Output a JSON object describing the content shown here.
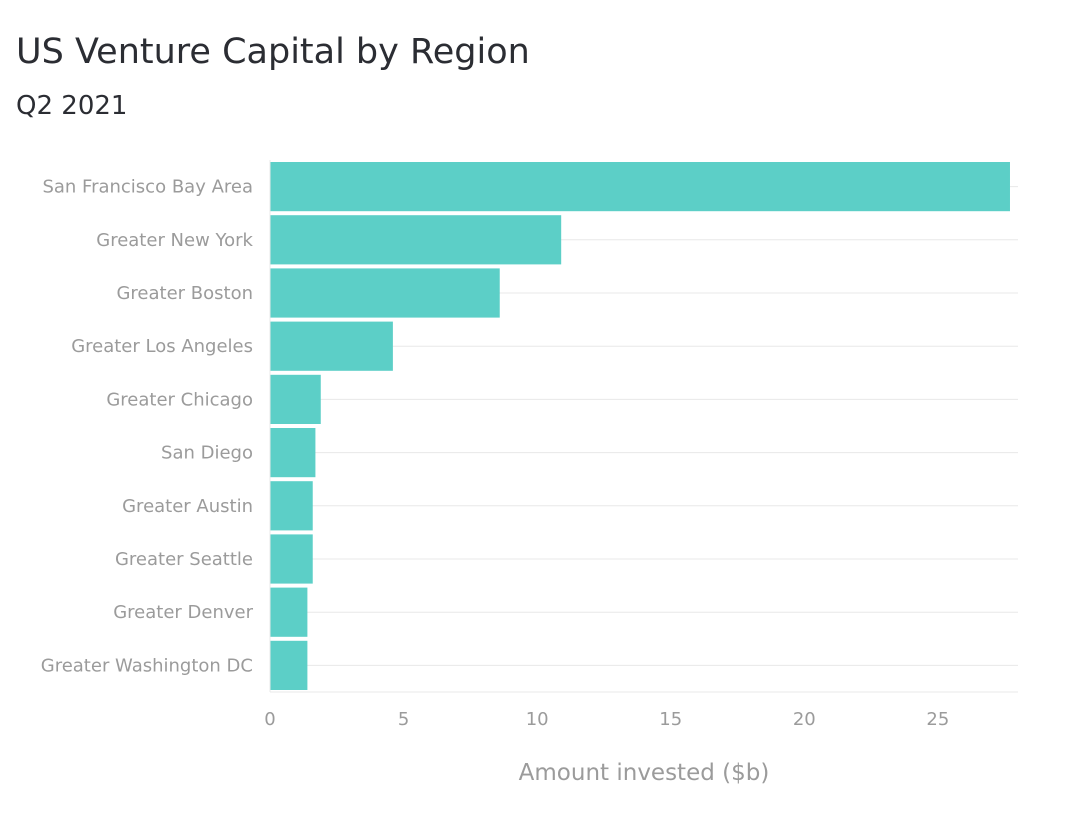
{
  "chart_data": {
    "type": "bar",
    "orientation": "horizontal",
    "title": "US Venture Capital by Region",
    "subtitle": "Q2 2021",
    "xlabel": "Amount invested ($b)",
    "ylabel": "",
    "categories": [
      "San Francisco Bay Area",
      "Greater New York",
      "Greater Boston",
      "Greater Los Angeles",
      "Greater Chicago",
      "San Diego",
      "Greater Austin",
      "Greater Seattle",
      "Greater Denver",
      "Greater Washington DC"
    ],
    "values": [
      27.7,
      10.9,
      8.6,
      4.6,
      1.9,
      1.7,
      1.6,
      1.6,
      1.4,
      1.4
    ],
    "xlim": [
      0,
      28
    ],
    "xticks": [
      0,
      5,
      10,
      15,
      20,
      25
    ],
    "grid": true,
    "legend": "none",
    "bar_color": "#5ccfc7",
    "grid_color": "#e8e8e8",
    "label_color": "#9b9b9b",
    "title_color": "#2b2d33"
  }
}
